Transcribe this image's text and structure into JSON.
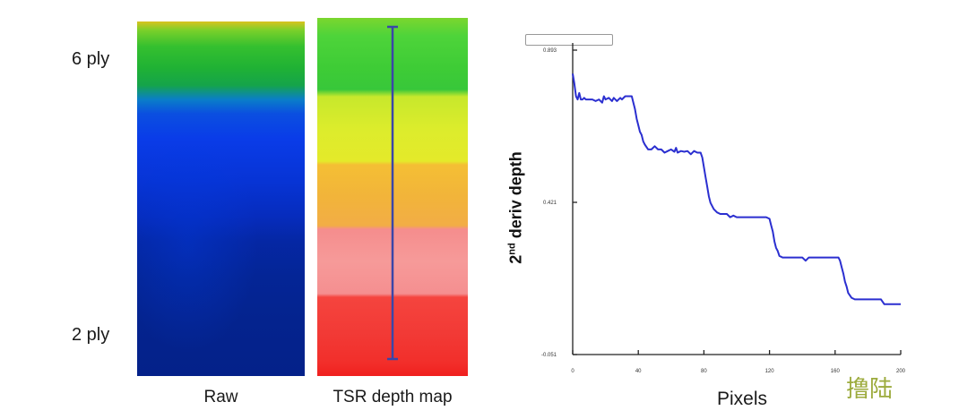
{
  "left_panels": {
    "label_top": "6 ply",
    "label_bottom": "2 ply",
    "raw_caption": "Raw",
    "tsr_caption": "TSR depth map",
    "line_color": "#3a46a8"
  },
  "watermark": "撸陆",
  "chart_data": {
    "type": "line",
    "ylabel_main": "2",
    "ylabel_sup": "nd",
    "ylabel_rest": " deriv depth",
    "xlabel": "Pixels",
    "xlim": [
      0,
      200
    ],
    "ylim": [
      -0.051,
      0.893
    ],
    "xticks": [
      0,
      40,
      80,
      120,
      160,
      200
    ],
    "yticks": [
      -0.051,
      0.421,
      0.893
    ],
    "xtick_labels": [
      "0",
      "40",
      "80",
      "120",
      "160",
      "200"
    ],
    "ytick_labels": [
      "-0.051",
      "0.421",
      "0.893"
    ],
    "grid": false,
    "color": "#2b2fd0",
    "x": [
      0,
      1,
      2,
      3,
      4,
      5,
      6,
      7,
      8,
      10,
      12,
      14,
      16,
      18,
      19,
      20,
      22,
      24,
      25,
      27,
      29,
      30,
      32,
      34,
      36,
      37,
      38,
      39,
      40,
      41,
      42,
      43,
      44,
      46,
      48,
      50,
      52,
      54,
      56,
      58,
      60,
      62,
      63,
      64,
      66,
      68,
      70,
      72,
      74,
      76,
      78,
      79,
      80,
      81,
      82,
      83,
      84,
      86,
      88,
      90,
      92,
      94,
      96,
      98,
      100,
      102,
      104,
      106,
      108,
      110,
      112,
      114,
      116,
      118,
      120,
      121,
      122,
      123,
      124,
      125,
      126,
      128,
      130,
      132,
      134,
      136,
      138,
      140,
      142,
      144,
      146,
      148,
      150,
      152,
      154,
      156,
      158,
      160,
      162,
      163,
      164,
      165,
      166,
      167,
      168,
      170,
      172,
      174,
      176,
      178,
      180,
      182,
      184,
      186,
      188,
      190,
      192,
      194,
      196,
      198,
      200
    ],
    "y": [
      0.82,
      0.79,
      0.75,
      0.74,
      0.76,
      0.74,
      0.74,
      0.745,
      0.74,
      0.74,
      0.74,
      0.735,
      0.74,
      0.73,
      0.75,
      0.74,
      0.745,
      0.735,
      0.745,
      0.735,
      0.745,
      0.74,
      0.75,
      0.75,
      0.75,
      0.73,
      0.71,
      0.68,
      0.66,
      0.64,
      0.63,
      0.61,
      0.6,
      0.585,
      0.585,
      0.595,
      0.585,
      0.585,
      0.575,
      0.58,
      0.585,
      0.578,
      0.59,
      0.575,
      0.58,
      0.578,
      0.58,
      0.57,
      0.58,
      0.575,
      0.575,
      0.56,
      0.53,
      0.5,
      0.47,
      0.44,
      0.42,
      0.4,
      0.39,
      0.385,
      0.385,
      0.385,
      0.375,
      0.38,
      0.375,
      0.375,
      0.375,
      0.375,
      0.375,
      0.375,
      0.375,
      0.375,
      0.375,
      0.375,
      0.37,
      0.35,
      0.33,
      0.3,
      0.28,
      0.27,
      0.255,
      0.25,
      0.25,
      0.25,
      0.25,
      0.25,
      0.25,
      0.25,
      0.24,
      0.25,
      0.25,
      0.25,
      0.25,
      0.25,
      0.25,
      0.25,
      0.25,
      0.25,
      0.25,
      0.24,
      0.22,
      0.2,
      0.175,
      0.16,
      0.14,
      0.125,
      0.12,
      0.12,
      0.12,
      0.12,
      0.12,
      0.12,
      0.12,
      0.12,
      0.12,
      0.105,
      0.105,
      0.105,
      0.105,
      0.105,
      0.105
    ]
  }
}
